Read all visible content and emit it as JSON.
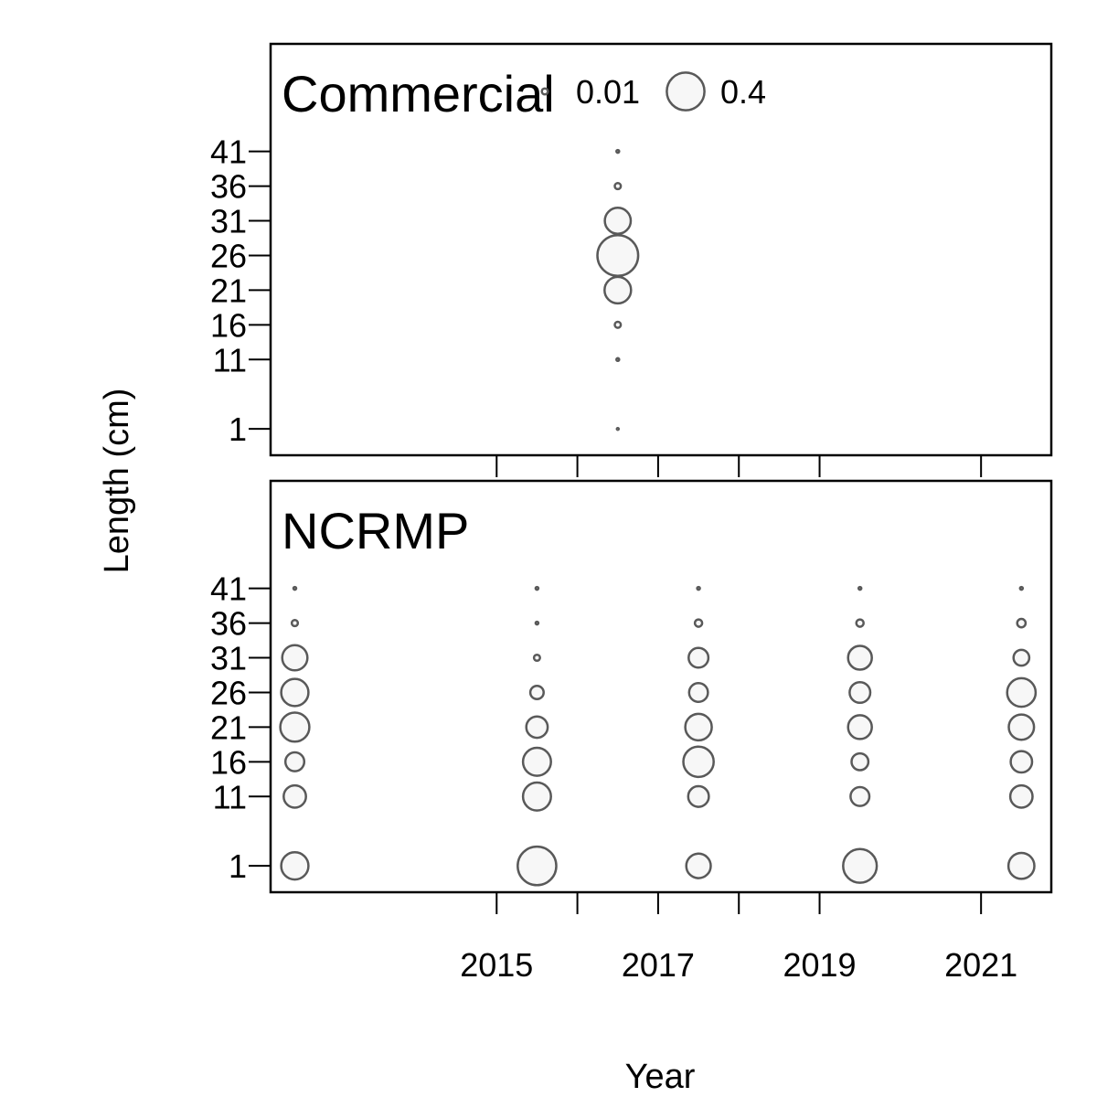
{
  "chart_data": {
    "type": "scatter",
    "xlabel": "Year",
    "ylabel": "Length (cm)",
    "x_ticks": [
      2015,
      2017,
      2019,
      2021
    ],
    "x_minor_ticks": [
      2016,
      2018
    ],
    "y_ticks": [
      1,
      11,
      16,
      21,
      26,
      31,
      36,
      41
    ],
    "xlim": [
      2012.2,
      2021.87
    ],
    "ylim": [
      -2.8,
      56.5
    ],
    "legend": {
      "placement": "top-right of upper panel",
      "entries": [
        {
          "label": "0.01",
          "value": 0.01
        },
        {
          "label": "0.4",
          "value": 0.4
        }
      ]
    },
    "panels": [
      {
        "label": "Commercial",
        "points": [
          {
            "year": 2016.5,
            "length": 1,
            "proportion": 0.001
          },
          {
            "year": 2016.5,
            "length": 11,
            "proportion": 0.002
          },
          {
            "year": 2016.5,
            "length": 16,
            "proportion": 0.01
          },
          {
            "year": 2016.5,
            "length": 21,
            "proportion": 0.2
          },
          {
            "year": 2016.5,
            "length": 26,
            "proportion": 0.47
          },
          {
            "year": 2016.5,
            "length": 31,
            "proportion": 0.19
          },
          {
            "year": 2016.5,
            "length": 36,
            "proportion": 0.01
          },
          {
            "year": 2016.5,
            "length": 41,
            "proportion": 0.002
          }
        ]
      },
      {
        "label": "NCRMP",
        "points": [
          {
            "year": 2012.5,
            "length": 1,
            "proportion": 0.21
          },
          {
            "year": 2012.5,
            "length": 11,
            "proportion": 0.14
          },
          {
            "year": 2012.5,
            "length": 16,
            "proportion": 0.1
          },
          {
            "year": 2012.5,
            "length": 21,
            "proportion": 0.24
          },
          {
            "year": 2012.5,
            "length": 26,
            "proportion": 0.21
          },
          {
            "year": 2012.5,
            "length": 31,
            "proportion": 0.18
          },
          {
            "year": 2012.5,
            "length": 36,
            "proportion": 0.01
          },
          {
            "year": 2012.5,
            "length": 41,
            "proportion": 0.002
          },
          {
            "year": 2015.5,
            "length": 1,
            "proportion": 0.42
          },
          {
            "year": 2015.5,
            "length": 11,
            "proportion": 0.22
          },
          {
            "year": 2015.5,
            "length": 16,
            "proportion": 0.22
          },
          {
            "year": 2015.5,
            "length": 21,
            "proportion": 0.13
          },
          {
            "year": 2015.5,
            "length": 26,
            "proportion": 0.05
          },
          {
            "year": 2015.5,
            "length": 31,
            "proportion": 0.01
          },
          {
            "year": 2015.5,
            "length": 36,
            "proportion": 0.002
          },
          {
            "year": 2015.5,
            "length": 41,
            "proportion": 0.002
          },
          {
            "year": 2017.5,
            "length": 1,
            "proportion": 0.17
          },
          {
            "year": 2017.5,
            "length": 11,
            "proportion": 0.12
          },
          {
            "year": 2017.5,
            "length": 16,
            "proportion": 0.26
          },
          {
            "year": 2017.5,
            "length": 21,
            "proportion": 0.2
          },
          {
            "year": 2017.5,
            "length": 26,
            "proportion": 0.1
          },
          {
            "year": 2017.5,
            "length": 31,
            "proportion": 0.11
          },
          {
            "year": 2017.5,
            "length": 36,
            "proportion": 0.015
          },
          {
            "year": 2017.5,
            "length": 41,
            "proportion": 0.002
          },
          {
            "year": 2019.5,
            "length": 1,
            "proportion": 0.32
          },
          {
            "year": 2019.5,
            "length": 11,
            "proportion": 0.1
          },
          {
            "year": 2019.5,
            "length": 16,
            "proportion": 0.08
          },
          {
            "year": 2019.5,
            "length": 21,
            "proportion": 0.16
          },
          {
            "year": 2019.5,
            "length": 26,
            "proportion": 0.12
          },
          {
            "year": 2019.5,
            "length": 31,
            "proportion": 0.16
          },
          {
            "year": 2019.5,
            "length": 36,
            "proportion": 0.015
          },
          {
            "year": 2019.5,
            "length": 41,
            "proportion": 0.002
          },
          {
            "year": 2021.5,
            "length": 1,
            "proportion": 0.19
          },
          {
            "year": 2021.5,
            "length": 11,
            "proportion": 0.14
          },
          {
            "year": 2021.5,
            "length": 16,
            "proportion": 0.13
          },
          {
            "year": 2021.5,
            "length": 21,
            "proportion": 0.18
          },
          {
            "year": 2021.5,
            "length": 26,
            "proportion": 0.23
          },
          {
            "year": 2021.5,
            "length": 31,
            "proportion": 0.07
          },
          {
            "year": 2021.5,
            "length": 36,
            "proportion": 0.02
          },
          {
            "year": 2021.5,
            "length": 41,
            "proportion": 0.002
          }
        ]
      }
    ]
  }
}
